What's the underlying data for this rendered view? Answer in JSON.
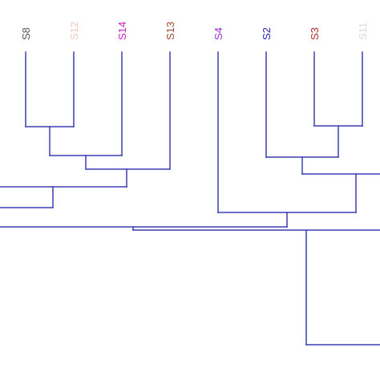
{
  "diagram": {
    "type": "dendrogram",
    "branch_color": "#3a3fb0",
    "leaves": [
      {
        "label": "S8",
        "color": "#555555"
      },
      {
        "label": "S12",
        "color": "#f0c8bd"
      },
      {
        "label": "S14",
        "color": "#cc1fcc"
      },
      {
        "label": "S13",
        "color": "#9a4a2a"
      },
      {
        "label": "S4",
        "color": "#9c2fd6"
      },
      {
        "label": "S2",
        "color": "#1f1fb0"
      },
      {
        "label": "S3",
        "color": "#b02a2a"
      },
      {
        "label": "S11",
        "color": "#d8d8d8"
      }
    ]
  }
}
